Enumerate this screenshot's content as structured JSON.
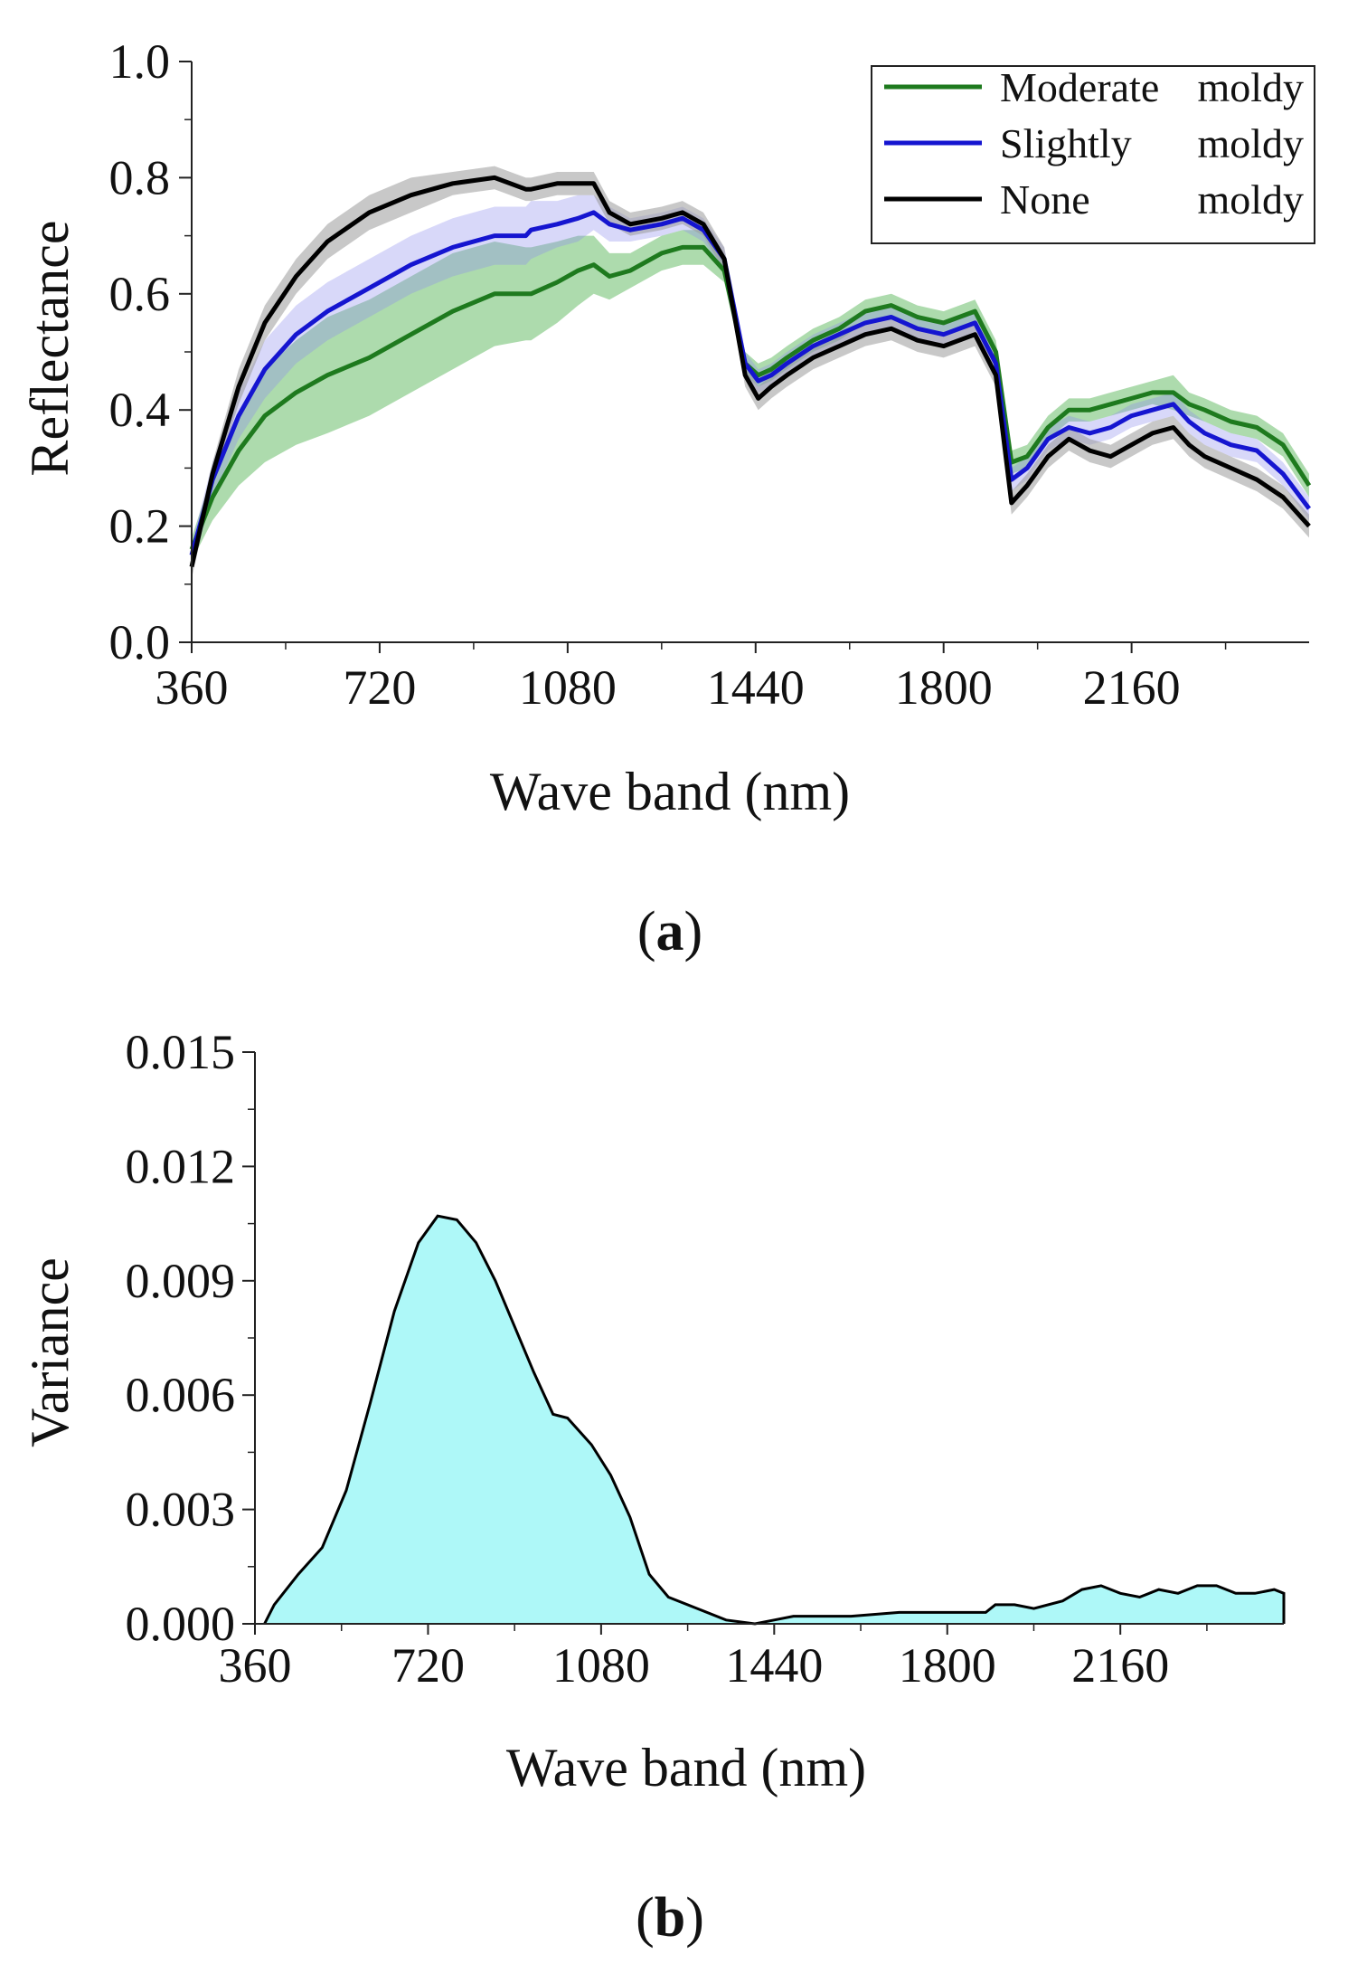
{
  "chart_data": [
    {
      "type": "line",
      "panel_label": "a",
      "xlabel": "Wave band (nm)",
      "ylabel": "Reflectance",
      "xlim": [
        360,
        2500
      ],
      "ylim": [
        0.0,
        1.0
      ],
      "xticks": [
        "360",
        "720",
        "1080",
        "1440",
        "1800",
        "2160"
      ],
      "yticks": [
        "0.0",
        "0.2",
        "0.4",
        "0.6",
        "0.8",
        "1.0"
      ],
      "legend_position": "top-right",
      "x": [
        360,
        400,
        450,
        500,
        560,
        620,
        700,
        780,
        860,
        940,
        1000,
        1010,
        1060,
        1100,
        1130,
        1160,
        1200,
        1260,
        1300,
        1340,
        1380,
        1420,
        1445,
        1470,
        1500,
        1550,
        1600,
        1650,
        1700,
        1750,
        1800,
        1860,
        1900,
        1930,
        1960,
        2000,
        2040,
        2080,
        2120,
        2160,
        2200,
        2240,
        2270,
        2300,
        2350,
        2400,
        2450,
        2500
      ],
      "series": [
        {
          "name": "Moderate moldy",
          "color": "#1e7a1e",
          "band_color": "#5cb85c",
          "values": [
            0.16,
            0.25,
            0.33,
            0.39,
            0.43,
            0.46,
            0.49,
            0.53,
            0.57,
            0.6,
            0.6,
            0.6,
            0.62,
            0.64,
            0.65,
            0.63,
            0.64,
            0.67,
            0.68,
            0.68,
            0.64,
            0.48,
            0.46,
            0.47,
            0.49,
            0.52,
            0.54,
            0.57,
            0.58,
            0.56,
            0.55,
            0.57,
            0.5,
            0.31,
            0.32,
            0.37,
            0.4,
            0.4,
            0.41,
            0.42,
            0.43,
            0.43,
            0.41,
            0.4,
            0.38,
            0.37,
            0.34,
            0.27
          ],
          "std": [
            0.02,
            0.04,
            0.06,
            0.08,
            0.09,
            0.1,
            0.1,
            0.1,
            0.1,
            0.09,
            0.08,
            0.08,
            0.07,
            0.06,
            0.05,
            0.04,
            0.03,
            0.03,
            0.03,
            0.03,
            0.02,
            0.02,
            0.02,
            0.02,
            0.02,
            0.02,
            0.02,
            0.02,
            0.02,
            0.02,
            0.02,
            0.02,
            0.02,
            0.02,
            0.02,
            0.02,
            0.02,
            0.02,
            0.02,
            0.02,
            0.02,
            0.03,
            0.02,
            0.02,
            0.02,
            0.02,
            0.02,
            0.02
          ]
        },
        {
          "name": "Slightly   moldy",
          "color": "#1515d0",
          "band_color": "#8f8fef",
          "values": [
            0.15,
            0.28,
            0.39,
            0.47,
            0.53,
            0.57,
            0.61,
            0.65,
            0.68,
            0.7,
            0.7,
            0.71,
            0.72,
            0.73,
            0.74,
            0.72,
            0.71,
            0.72,
            0.73,
            0.71,
            0.66,
            0.48,
            0.45,
            0.46,
            0.48,
            0.51,
            0.53,
            0.55,
            0.56,
            0.54,
            0.53,
            0.55,
            0.48,
            0.28,
            0.3,
            0.35,
            0.37,
            0.36,
            0.37,
            0.39,
            0.4,
            0.41,
            0.38,
            0.36,
            0.34,
            0.33,
            0.29,
            0.23
          ],
          "std": [
            0.02,
            0.03,
            0.04,
            0.05,
            0.05,
            0.05,
            0.05,
            0.05,
            0.05,
            0.05,
            0.05,
            0.05,
            0.04,
            0.04,
            0.03,
            0.03,
            0.02,
            0.02,
            0.02,
            0.02,
            0.02,
            0.02,
            0.02,
            0.02,
            0.02,
            0.02,
            0.02,
            0.02,
            0.02,
            0.02,
            0.02,
            0.02,
            0.02,
            0.02,
            0.02,
            0.02,
            0.02,
            0.02,
            0.02,
            0.02,
            0.02,
            0.02,
            0.02,
            0.02,
            0.02,
            0.02,
            0.02,
            0.02
          ]
        },
        {
          "name": "None        moldy",
          "color": "#000000",
          "band_color": "#9a9a9a",
          "values": [
            0.13,
            0.29,
            0.44,
            0.55,
            0.63,
            0.69,
            0.74,
            0.77,
            0.79,
            0.8,
            0.78,
            0.78,
            0.79,
            0.79,
            0.79,
            0.74,
            0.72,
            0.73,
            0.74,
            0.72,
            0.66,
            0.46,
            0.42,
            0.44,
            0.46,
            0.49,
            0.51,
            0.53,
            0.54,
            0.52,
            0.51,
            0.53,
            0.46,
            0.24,
            0.27,
            0.32,
            0.35,
            0.33,
            0.32,
            0.34,
            0.36,
            0.37,
            0.34,
            0.32,
            0.3,
            0.28,
            0.25,
            0.2
          ],
          "std": [
            0.02,
            0.02,
            0.03,
            0.03,
            0.03,
            0.03,
            0.03,
            0.03,
            0.02,
            0.02,
            0.02,
            0.02,
            0.02,
            0.02,
            0.02,
            0.02,
            0.02,
            0.02,
            0.02,
            0.02,
            0.02,
            0.02,
            0.02,
            0.02,
            0.02,
            0.02,
            0.02,
            0.02,
            0.02,
            0.02,
            0.02,
            0.02,
            0.02,
            0.02,
            0.02,
            0.02,
            0.02,
            0.02,
            0.02,
            0.02,
            0.02,
            0.02,
            0.02,
            0.02,
            0.02,
            0.02,
            0.02,
            0.02
          ]
        }
      ]
    },
    {
      "type": "area",
      "panel_label": "b",
      "xlabel": "Wave band (nm)",
      "ylabel": "Variance",
      "xlim": [
        360,
        2500
      ],
      "ylim": [
        0.0,
        0.015
      ],
      "xticks": [
        "360",
        "720",
        "1080",
        "1440",
        "1800",
        "2160"
      ],
      "yticks": [
        "0.000",
        "0.003",
        "0.006",
        "0.009",
        "0.012",
        "0.015"
      ],
      "fill_color": "#aef8f8",
      "line_color": "#000000",
      "x": [
        380,
        400,
        450,
        500,
        550,
        600,
        650,
        700,
        740,
        780,
        820,
        860,
        900,
        940,
        980,
        1010,
        1060,
        1100,
        1140,
        1180,
        1220,
        1280,
        1340,
        1400,
        1440,
        1480,
        1520,
        1600,
        1700,
        1800,
        1880,
        1900,
        1940,
        1980,
        2040,
        2080,
        2120,
        2160,
        2200,
        2240,
        2280,
        2320,
        2360,
        2400,
        2440,
        2480,
        2500
      ],
      "values": [
        0.0,
        0.0005,
        0.0013,
        0.002,
        0.0035,
        0.0058,
        0.0082,
        0.01,
        0.0107,
        0.0106,
        0.01,
        0.009,
        0.0078,
        0.0066,
        0.0055,
        0.0054,
        0.0047,
        0.0039,
        0.0028,
        0.0013,
        0.0007,
        0.0004,
        0.0001,
        0.0,
        0.0001,
        0.0002,
        0.0002,
        0.0002,
        0.0003,
        0.0003,
        0.0003,
        0.0005,
        0.0005,
        0.0004,
        0.0006,
        0.0009,
        0.001,
        0.0008,
        0.0007,
        0.0009,
        0.0008,
        0.001,
        0.001,
        0.0008,
        0.0008,
        0.0009,
        0.0008
      ]
    }
  ]
}
